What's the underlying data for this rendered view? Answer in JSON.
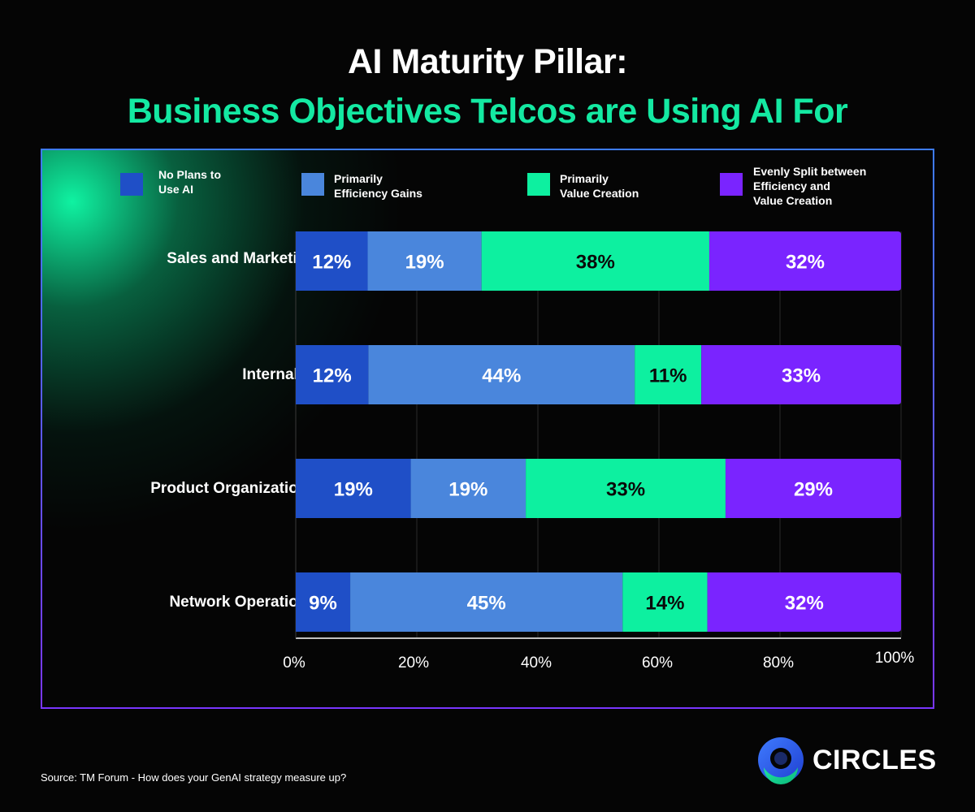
{
  "header": {
    "title_line1": "AI Maturity Pillar:",
    "title_line2": "Business Objectives Telcos are Using AI For"
  },
  "legend": [
    {
      "label": "No Plans to\nUse AI",
      "color": "#1f4fc7"
    },
    {
      "label": "Primarily\nEfficiency Gains",
      "color": "#4a86dc"
    },
    {
      "label": "Primarily\nValue Creation",
      "color": "#0df0a0"
    },
    {
      "label": "Evenly Split between\nEfficiency and\nValue Creation",
      "color": "#7a24ff"
    }
  ],
  "chart_data": {
    "type": "bar",
    "orientation": "horizontal",
    "stacked": true,
    "categories": [
      "Sales and Marketing",
      "Internal IT",
      "Product Organizations",
      "Network Operations"
    ],
    "series": [
      {
        "name": "No Plans to Use AI",
        "color": "#1f4fc7",
        "values": [
          12,
          12,
          19,
          9
        ],
        "labels": [
          "12%",
          "12%",
          "19%",
          "9%"
        ]
      },
      {
        "name": "Primarily Efficiency Gains",
        "color": "#4a86dc",
        "values": [
          19,
          44,
          19,
          45
        ],
        "labels": [
          "19%",
          "44%",
          "19%",
          "45%"
        ]
      },
      {
        "name": "Primarily Value Creation",
        "color": "#0df0a0",
        "values": [
          38,
          11,
          33,
          14
        ],
        "labels": [
          "38%",
          "11%",
          "33%",
          "14%"
        ]
      },
      {
        "name": "Evenly Split between Efficiency and Value Creation",
        "color": "#7a24ff",
        "values": [
          32,
          33,
          29,
          32
        ],
        "labels": [
          "32%",
          "33%",
          "29%",
          "32%"
        ]
      }
    ],
    "x_ticks": [
      "0%",
      "20%",
      "40%",
      "60%",
      "80%",
      "100%"
    ],
    "xlim": [
      0,
      100
    ],
    "grid": true,
    "legend_position": "top"
  },
  "source": "Source: TM Forum - How does your GenAI strategy measure up?",
  "brand": {
    "name": "CIRCLES"
  }
}
